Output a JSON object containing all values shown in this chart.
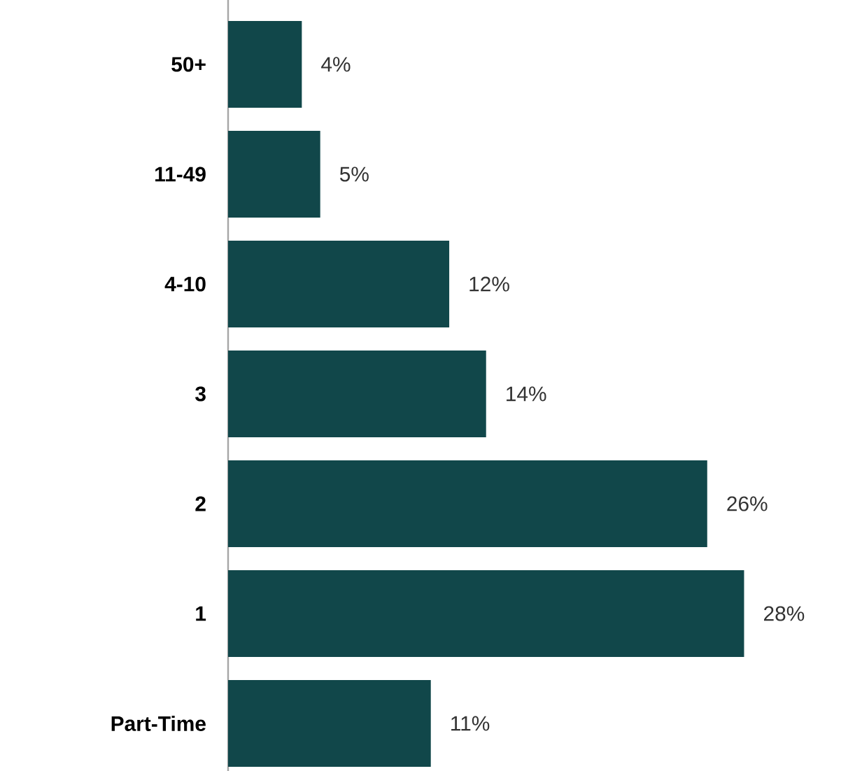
{
  "chart_data": {
    "type": "bar",
    "orientation": "horizontal",
    "categories": [
      "50+",
      "11-49",
      "4-10",
      "3",
      "2",
      "1",
      "Part-Time"
    ],
    "values": [
      4,
      5,
      12,
      14,
      26,
      28,
      11
    ],
    "value_labels": [
      "4%",
      "5%",
      "12%",
      "14%",
      "26%",
      "28%",
      "11%"
    ],
    "color": "#11474a"
  }
}
